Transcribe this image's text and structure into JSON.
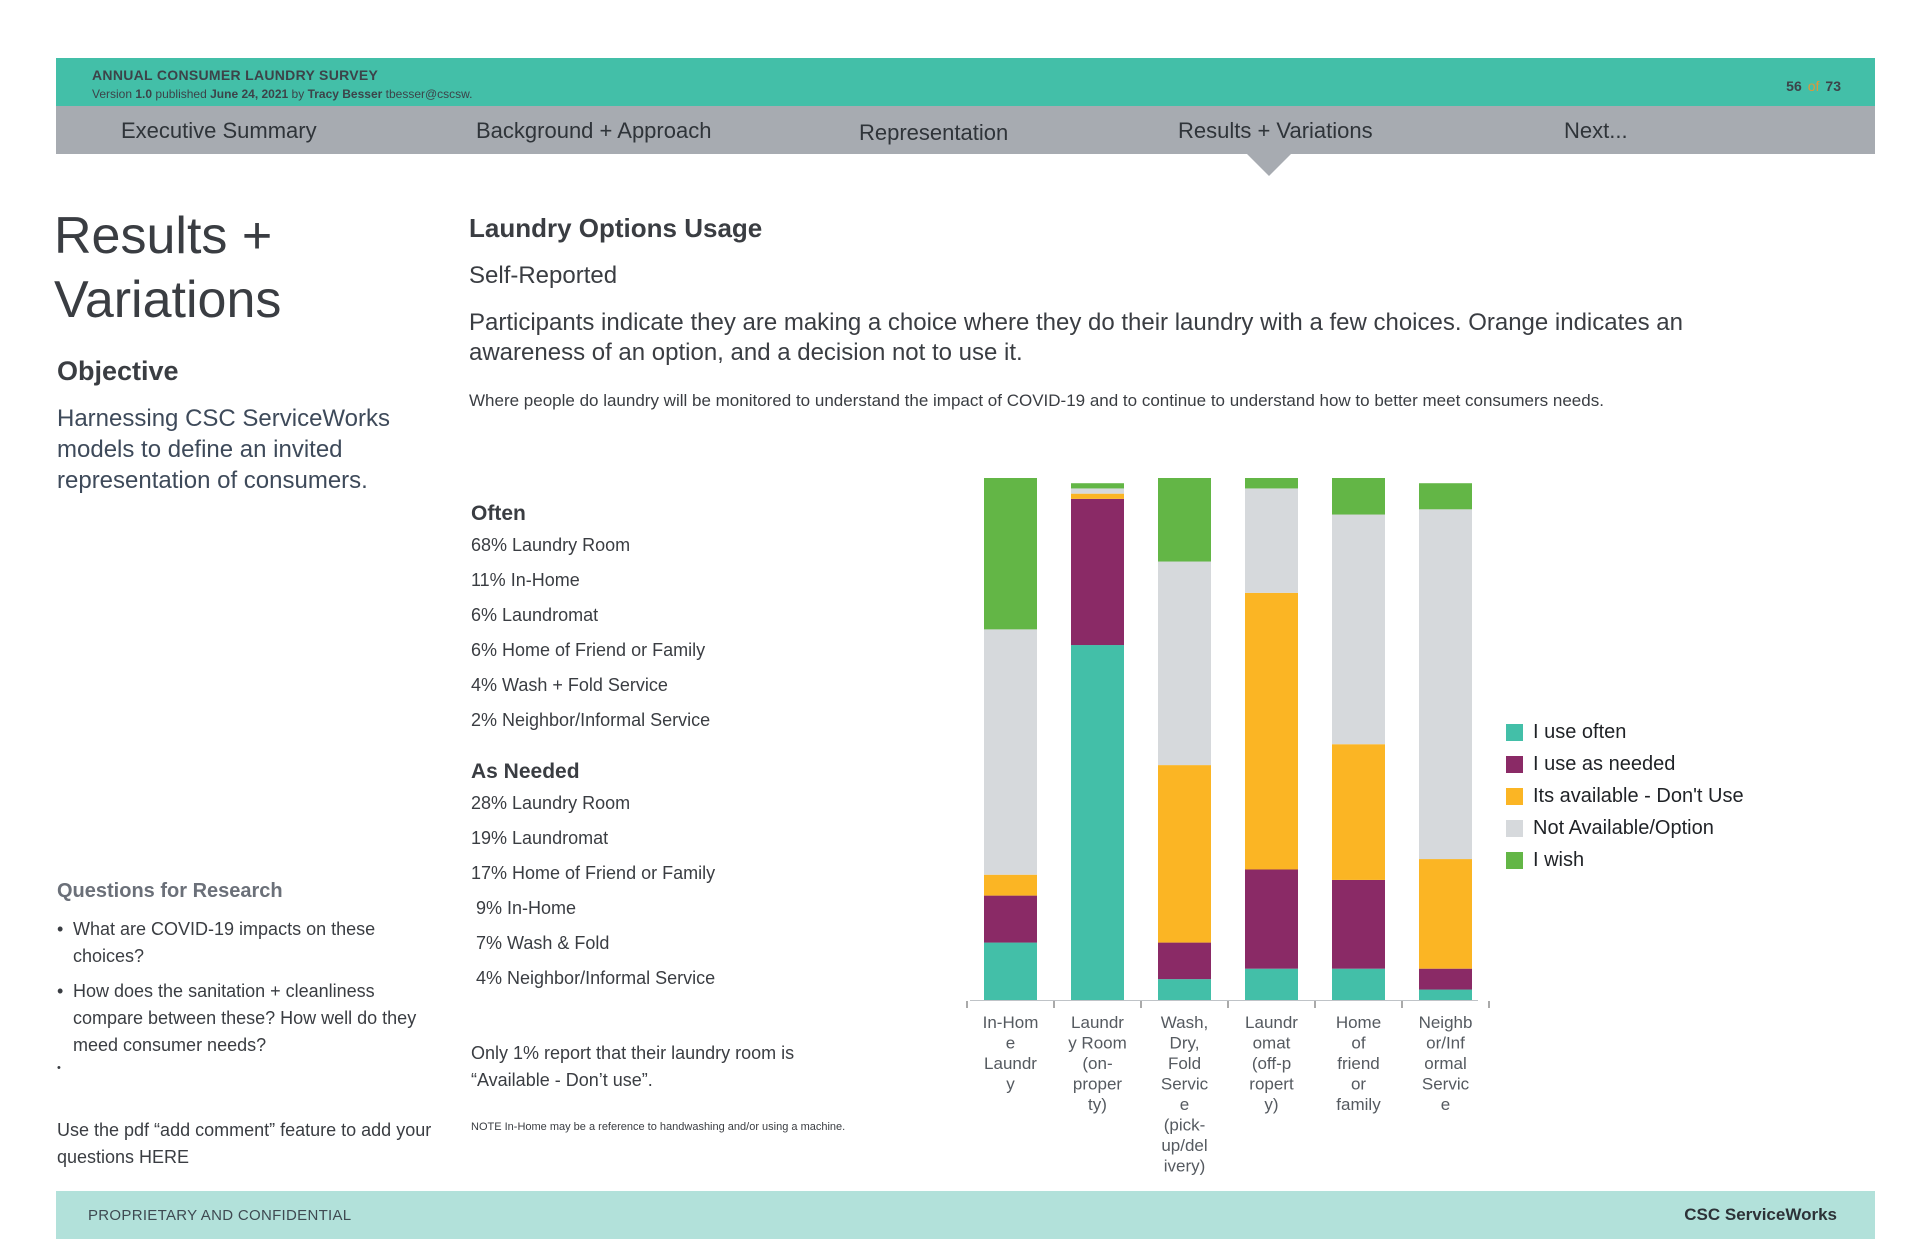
{
  "header": {
    "title": "ANNUAL CONSUMER LAUNDRY SURVEY",
    "version_prefix": "Version",
    "version": "1.0",
    "published_label": "published",
    "date": "June 24, 2021",
    "by_label": "by",
    "author": "Tracy Besser",
    "email": "tbesser@cscsw.",
    "page_current": "56",
    "page_of": "of",
    "page_total": "73"
  },
  "nav": {
    "items": [
      "Executive Summary",
      "Background + Approach",
      "Representation",
      "Results + Variations",
      "Next..."
    ],
    "active": "Results + Variations"
  },
  "left": {
    "title_line1": "Results +",
    "title_line2": "Variations",
    "objective_heading": "Objective",
    "objective_text": "Harnessing CSC ServiceWorks models to define an invited representation of consumers.",
    "questions_heading": "Questions for Research",
    "questions": [
      "What are COVID-19 impacts on these choices?",
      "How does the sanitation + cleanliness compare between these? How well do they meed consumer needs?",
      ""
    ],
    "bullet": "•",
    "comment_note": "Use the pdf “add comment” feature to add your questions HERE"
  },
  "main": {
    "title": "Laundry Options Usage",
    "subtitle": "Self-Reported",
    "lead": "Participants indicate they are making a choice where they do their laundry with a few choices. Orange indicates an awareness of an option, and a decision not to use it.",
    "body": "Where people do laundry will be monitored to understand the impact of COVID-19 and to continue to understand how to better meet consumers needs.",
    "often_heading": "Often",
    "often_items": [
      "68% Laundry Room",
      "11% In-Home",
      "6% Laundromat",
      "6% Home of Friend or Family",
      "4% Wash + Fold Service",
      "2% Neighbor/Informal Service"
    ],
    "asneeded_heading": "As Needed",
    "asneeded_items": [
      "28% Laundry Room",
      "19% Laundromat",
      "17% Home of Friend or Family",
      " 9% In-Home",
      " 7% Wash & Fold",
      " 4% Neighbor/Informal Service"
    ],
    "only_note": "Only 1% report that their laundry room is “Available - Don’t use”.",
    "small_note": "NOTE In-Home may be a reference to handwashing and/or using a machine."
  },
  "chart_data": {
    "type": "bar",
    "stacked": true,
    "percent_stacked": true,
    "categories": [
      [
        "In-Hom",
        "e",
        "Laundr",
        "y"
      ],
      [
        "Laundr",
        "y Room",
        "(on-",
        "proper",
        "ty)"
      ],
      [
        "Wash,",
        "Dry,",
        "Fold",
        "Servic",
        "e",
        "(pick-",
        "up/del",
        "ivery)"
      ],
      [
        "Laundr",
        "omat",
        "(off-p",
        "ropert",
        "y)"
      ],
      [
        "Home",
        "of",
        "friend",
        "or",
        "family"
      ],
      [
        "Neighb",
        "or/Inf",
        "ormal",
        "Servic",
        "e"
      ]
    ],
    "series": [
      {
        "name": "I use often",
        "color": "#43bfa8",
        "values": [
          11,
          68,
          4,
          6,
          6,
          2
        ]
      },
      {
        "name": "I use as needed",
        "color": "#8a2a66",
        "values": [
          9,
          28,
          7,
          19,
          17,
          4
        ]
      },
      {
        "name": "Its available - Don't Use",
        "color": "#fbb524",
        "values": [
          4,
          1,
          34,
          53,
          26,
          21
        ]
      },
      {
        "name": "Not Available/Option",
        "color": "#d6d9dc",
        "values": [
          47,
          1,
          39,
          20,
          44,
          67
        ]
      },
      {
        "name": "I wish",
        "color": "#63b646",
        "values": [
          29,
          1,
          16,
          2,
          7,
          5
        ]
      }
    ],
    "ylim": [
      0,
      100
    ],
    "grid": false,
    "legend_position": "right"
  }
}
